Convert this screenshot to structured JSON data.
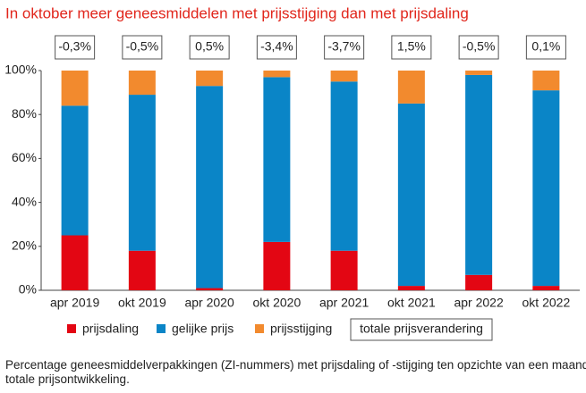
{
  "chart_data": {
    "type": "stacked_bar",
    "title": "In oktober meer geneesmiddelen met prijsstijging dan met prijsdaling",
    "categories": [
      "apr 2019",
      "okt 2019",
      "apr 2020",
      "okt 2020",
      "apr 2021",
      "okt 2021",
      "apr 2022",
      "okt 2022"
    ],
    "series": [
      {
        "name": "prijsdaling",
        "color": "#e30613",
        "values": [
          25,
          18,
          1,
          22,
          18,
          2,
          7,
          2
        ]
      },
      {
        "name": "gelijke prijs",
        "color": "#0a85c7",
        "values": [
          59,
          71,
          92,
          75,
          77,
          83,
          91,
          89
        ]
      },
      {
        "name": "prijsstijging",
        "color": "#f28a2e",
        "values": [
          16,
          11,
          7,
          3,
          5,
          15,
          2,
          9
        ]
      }
    ],
    "totals": {
      "name": "totale prijsverandering",
      "values": [
        -0.3,
        -0.5,
        0.5,
        -3.4,
        -3.7,
        1.5,
        -0.5,
        0.1
      ],
      "value_labels": [
        "-0,3%",
        "-0,5%",
        "0,5%",
        "-3,4%",
        "-3,7%",
        "1,5%",
        "-0,5%",
        "0,1%"
      ]
    },
    "ylim": [
      0,
      100
    ],
    "yticks": [
      {
        "value": 0,
        "label": "0%"
      },
      {
        "value": 20,
        "label": "20%"
      },
      {
        "value": 40,
        "label": "40%"
      },
      {
        "value": 60,
        "label": "60%"
      },
      {
        "value": 80,
        "label": "80%"
      },
      {
        "value": 100,
        "label": "100%"
      }
    ],
    "grid": false,
    "footnote": "Percentage geneesmiddelverpakkingen (ZI-nummers) met prijsdaling of -stijging ten opzichte van een maand eerder, inclusief totale prijsontwikkeling."
  }
}
